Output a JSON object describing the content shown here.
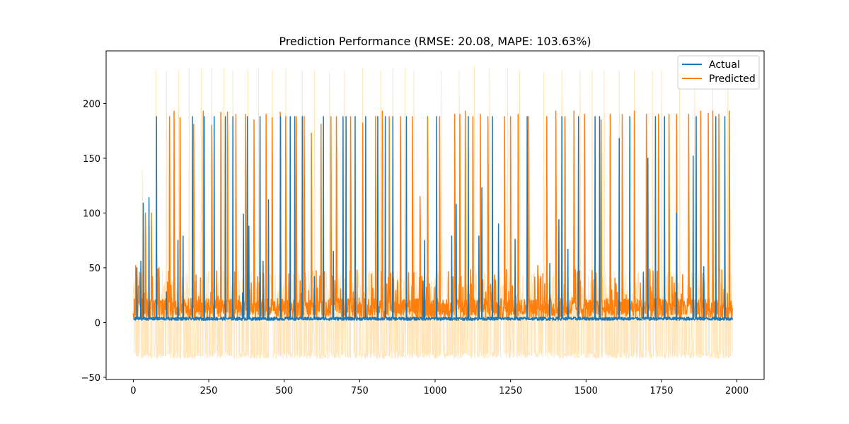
{
  "chart_data": {
    "type": "line",
    "title": "Prediction Performance (RMSE: 20.08, MAPE: 103.63%)",
    "xlabel": "",
    "ylabel": "",
    "xlim": [
      -90,
      2090
    ],
    "ylim": [
      -52,
      248
    ],
    "x_ticks": [
      0,
      250,
      500,
      750,
      1000,
      1250,
      1500,
      1750,
      2000
    ],
    "x_tick_labels": [
      "0",
      "250",
      "500",
      "750",
      "1000",
      "1250",
      "1500",
      "1750",
      "2000"
    ],
    "y_ticks": [
      -50,
      0,
      50,
      100,
      150,
      200
    ],
    "y_tick_labels": [
      "−50",
      "0",
      "50",
      "100",
      "150",
      "200"
    ],
    "grid": false,
    "legend_position": "top-right",
    "n_points": 1986,
    "series": [
      {
        "name": "Actual",
        "color": "#1f77b4",
        "baseline": 3.5,
        "spikes": [
          [
            12,
            50
          ],
          [
            25,
            56
          ],
          [
            33,
            109
          ],
          [
            52,
            114
          ],
          [
            77,
            188
          ],
          [
            110,
            28
          ],
          [
            148,
            75
          ],
          [
            165,
            79
          ],
          [
            196,
            188
          ],
          [
            235,
            188
          ],
          [
            268,
            188
          ],
          [
            305,
            188
          ],
          [
            330,
            188
          ],
          [
            362,
            27
          ],
          [
            365,
            99
          ],
          [
            378,
            188
          ],
          [
            383,
            88
          ],
          [
            420,
            188
          ],
          [
            430,
            56
          ],
          [
            448,
            112
          ],
          [
            488,
            188
          ],
          [
            520,
            188
          ],
          [
            535,
            188
          ],
          [
            560,
            188
          ],
          [
            600,
            42
          ],
          [
            630,
            188
          ],
          [
            663,
            65
          ],
          [
            695,
            188
          ],
          [
            705,
            188
          ],
          [
            735,
            188
          ],
          [
            770,
            188
          ],
          [
            810,
            188
          ],
          [
            835,
            188
          ],
          [
            860,
            188
          ],
          [
            905,
            188
          ],
          [
            960,
            38
          ],
          [
            965,
            75
          ],
          [
            1005,
            188
          ],
          [
            1055,
            79
          ],
          [
            1070,
            108
          ],
          [
            1110,
            188
          ],
          [
            1145,
            79
          ],
          [
            1155,
            123
          ],
          [
            1190,
            188
          ],
          [
            1210,
            90
          ],
          [
            1265,
            76
          ],
          [
            1305,
            188
          ],
          [
            1380,
            54
          ],
          [
            1410,
            94
          ],
          [
            1420,
            188
          ],
          [
            1440,
            67
          ],
          [
            1475,
            188
          ],
          [
            1530,
            188
          ],
          [
            1545,
            188
          ],
          [
            1610,
            168
          ],
          [
            1645,
            188
          ],
          [
            1690,
            46
          ],
          [
            1705,
            150
          ],
          [
            1730,
            188
          ],
          [
            1760,
            188
          ],
          [
            1800,
            100
          ],
          [
            1855,
            152
          ],
          [
            1865,
            188
          ],
          [
            1890,
            51
          ],
          [
            1930,
            188
          ],
          [
            1960,
            188
          ]
        ]
      },
      {
        "name": "Predicted",
        "color": "#ff7f0e",
        "baseline": 8,
        "spikes": [
          [
            8,
            52
          ],
          [
            20,
            46
          ],
          [
            40,
            100
          ],
          [
            60,
            100
          ],
          [
            85,
            50
          ],
          [
            120,
            188
          ],
          [
            135,
            193
          ],
          [
            155,
            187
          ],
          [
            200,
            181
          ],
          [
            232,
            193
          ],
          [
            260,
            180
          ],
          [
            290,
            192
          ],
          [
            312,
            192
          ],
          [
            340,
            190
          ],
          [
            372,
            190
          ],
          [
            400,
            185
          ],
          [
            440,
            190
          ],
          [
            460,
            187
          ],
          [
            487,
            192
          ],
          [
            505,
            188
          ],
          [
            540,
            188
          ],
          [
            566,
            188
          ],
          [
            590,
            173
          ],
          [
            622,
            181
          ],
          [
            655,
            188
          ],
          [
            673,
            188
          ],
          [
            720,
            188
          ],
          [
            760,
            182
          ],
          [
            803,
            188
          ],
          [
            825,
            193
          ],
          [
            848,
            188
          ],
          [
            885,
            188
          ],
          [
            925,
            188
          ],
          [
            950,
            115
          ],
          [
            975,
            188
          ],
          [
            1015,
            188
          ],
          [
            1065,
            190
          ],
          [
            1082,
            190
          ],
          [
            1100,
            193
          ],
          [
            1125,
            188
          ],
          [
            1150,
            190
          ],
          [
            1175,
            188
          ],
          [
            1230,
            188
          ],
          [
            1250,
            188
          ],
          [
            1275,
            190
          ],
          [
            1310,
            188
          ],
          [
            1340,
            52
          ],
          [
            1370,
            188
          ],
          [
            1400,
            193
          ],
          [
            1430,
            188
          ],
          [
            1460,
            193
          ],
          [
            1495,
            190
          ],
          [
            1550,
            185
          ],
          [
            1580,
            190
          ],
          [
            1620,
            190
          ],
          [
            1660,
            193
          ],
          [
            1700,
            190
          ],
          [
            1740,
            190
          ],
          [
            1775,
            190
          ],
          [
            1800,
            190
          ],
          [
            1840,
            190
          ],
          [
            1880,
            193
          ],
          [
            1905,
            191
          ],
          [
            1920,
            193
          ],
          [
            1940,
            190
          ],
          [
            1975,
            193
          ]
        ]
      },
      {
        "name": "",
        "color": "#ffdfa8",
        "band": [
          -33,
          47
        ],
        "spikes": [
          [
            30,
            140
          ],
          [
            75,
            230
          ],
          [
            110,
            230
          ],
          [
            150,
            230
          ],
          [
            185,
            232
          ],
          [
            225,
            232
          ],
          [
            260,
            232
          ],
          [
            300,
            232
          ],
          [
            330,
            230
          ],
          [
            380,
            230
          ],
          [
            415,
            232
          ],
          [
            460,
            230
          ],
          [
            505,
            232
          ],
          [
            560,
            230
          ],
          [
            600,
            230
          ],
          [
            650,
            228
          ],
          [
            700,
            230
          ],
          [
            760,
            232
          ],
          [
            820,
            230
          ],
          [
            860,
            232
          ],
          [
            900,
            232
          ],
          [
            930,
            230
          ],
          [
            1020,
            230
          ],
          [
            1080,
            230
          ],
          [
            1130,
            234
          ],
          [
            1180,
            232
          ],
          [
            1240,
            232
          ],
          [
            1280,
            230
          ],
          [
            1360,
            228
          ],
          [
            1420,
            230
          ],
          [
            1480,
            230
          ],
          [
            1520,
            230
          ],
          [
            1560,
            230
          ],
          [
            1610,
            230
          ],
          [
            1660,
            230
          ],
          [
            1720,
            230
          ],
          [
            1750,
            230
          ],
          [
            1810,
            230
          ],
          [
            1860,
            230
          ],
          [
            1920,
            232
          ],
          [
            1970,
            230
          ]
        ]
      }
    ]
  }
}
